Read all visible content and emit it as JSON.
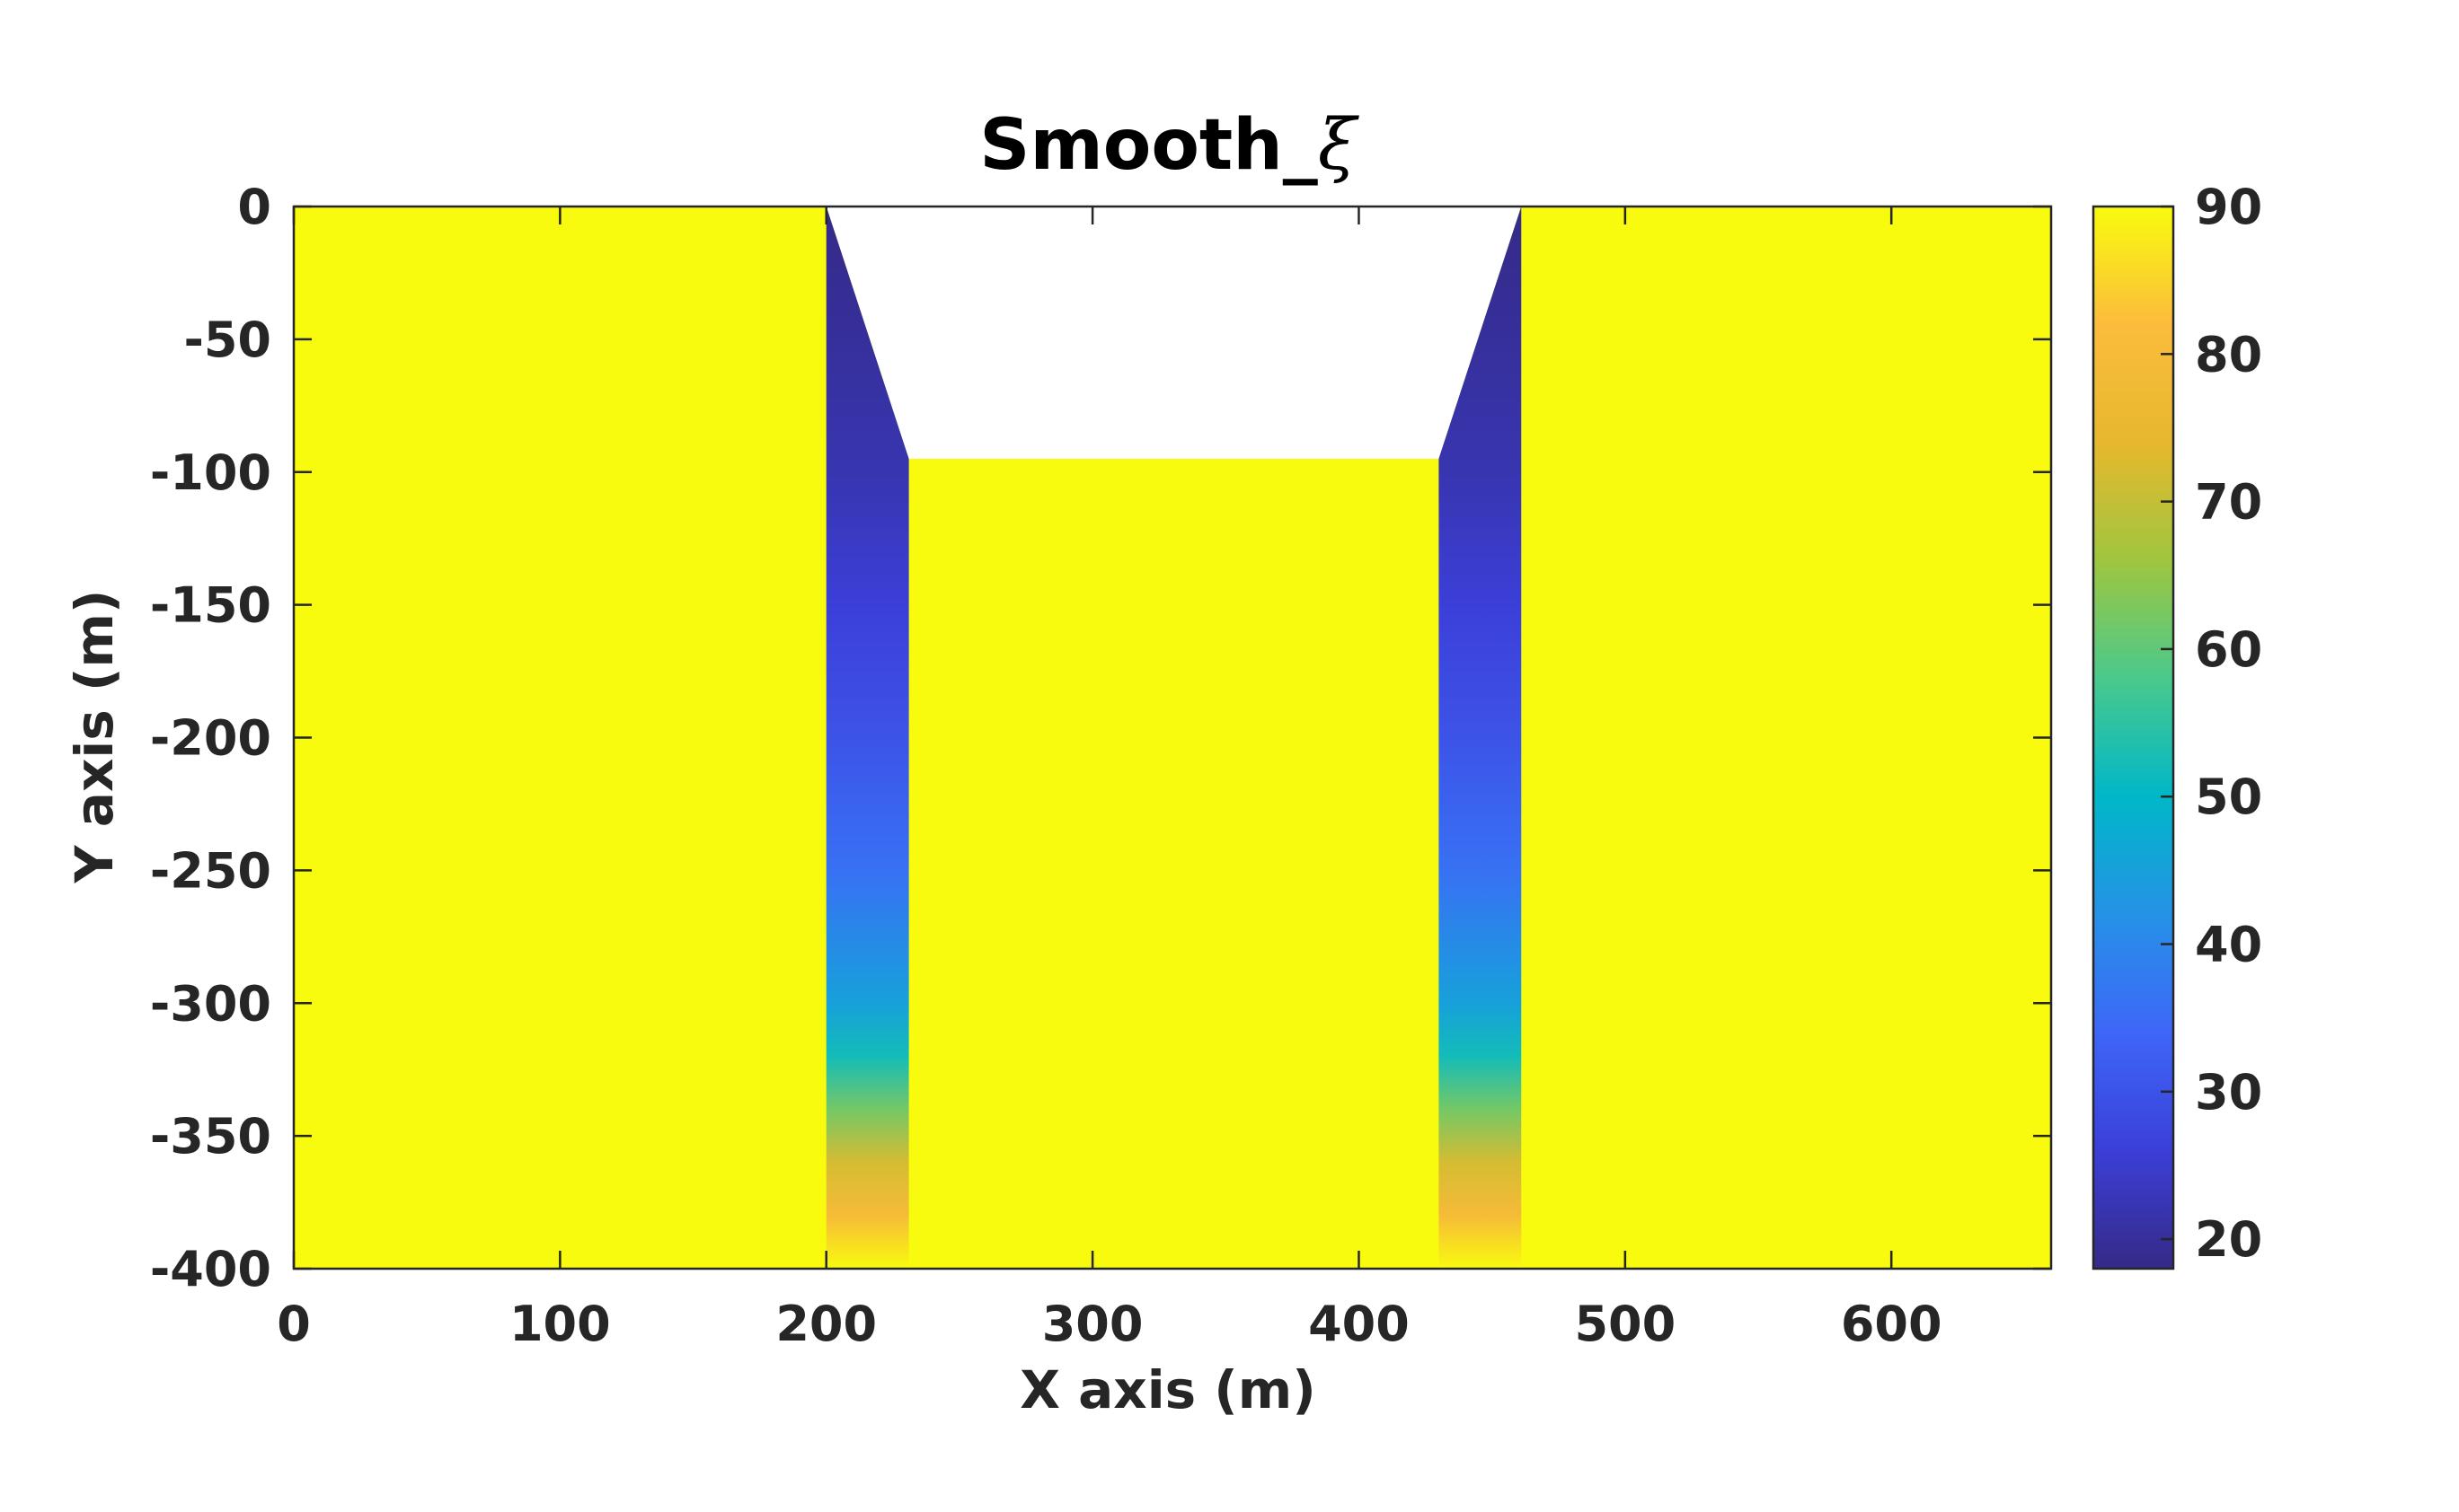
{
  "chart_data": {
    "type": "heatmap",
    "title": "Smooth_",
    "title_symbol": "ξ",
    "xlabel": "X axis (m)",
    "ylabel": "Y axis (m)",
    "xlim": [
      0,
      660
    ],
    "ylim": [
      -400,
      0
    ],
    "xticks": [
      0,
      100,
      200,
      300,
      400,
      500,
      600
    ],
    "yticks": [
      0,
      -50,
      -100,
      -150,
      -200,
      -250,
      -300,
      -350,
      -400
    ],
    "xtick_labels": [
      "0",
      "100",
      "200",
      "300",
      "400",
      "500",
      "600"
    ],
    "ytick_labels": [
      "0",
      "-50",
      "-100",
      "-150",
      "-200",
      "-250",
      "-300",
      "-350",
      "-400"
    ],
    "grid": false,
    "background_value": 90,
    "channel": {
      "top_left_x": 200,
      "top_right_x": 461,
      "bottom_left_x": 231,
      "bottom_right_x": 430,
      "floor_y": -95,
      "base_y": -400,
      "region_above_floor": "empty"
    },
    "walls": [
      {
        "name": "left",
        "outer_x": 200,
        "inner_x": 231,
        "top_y": 0,
        "inner_top_y": -95,
        "bottom_y": -400
      },
      {
        "name": "right",
        "outer_x": 461,
        "inner_x": 430,
        "top_y": 0,
        "inner_top_y": -95,
        "bottom_y": -400
      }
    ],
    "wall_value_profile": [
      {
        "y": 0,
        "value": 18
      },
      {
        "y": -100,
        "value": 22
      },
      {
        "y": -150,
        "value": 26
      },
      {
        "y": -200,
        "value": 30
      },
      {
        "y": -250,
        "value": 36
      },
      {
        "y": -300,
        "value": 45
      },
      {
        "y": -320,
        "value": 52
      },
      {
        "y": -340,
        "value": 62
      },
      {
        "y": -360,
        "value": 72
      },
      {
        "y": -380,
        "value": 80
      },
      {
        "y": -400,
        "value": 90
      }
    ],
    "colorbar": {
      "min": 18,
      "max": 90,
      "ticks": [
        20,
        30,
        40,
        50,
        60,
        70,
        80,
        90
      ],
      "tick_labels": [
        "20",
        "30",
        "40",
        "50",
        "60",
        "70",
        "80",
        "90"
      ],
      "colormap_name": "parula",
      "colormap": [
        "#352a87",
        "#3b3fd8",
        "#3e66f8",
        "#2592e6",
        "#00b7c8",
        "#4ac98c",
        "#9fc63f",
        "#e7b82d",
        "#fbbc3c",
        "#f9fb0e"
      ]
    },
    "colors": {
      "axes": "#262626",
      "title": "#000000",
      "empty_region": "#ffffff"
    }
  }
}
